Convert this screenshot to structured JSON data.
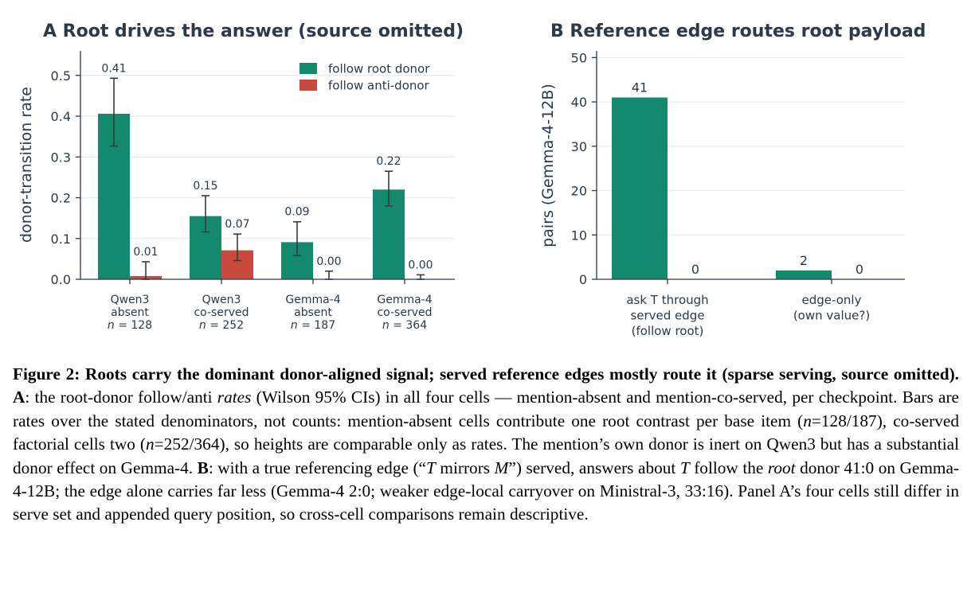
{
  "colors": {
    "root": "#138a6e",
    "anti": "#c94a3d",
    "axis": "#2b3a4a"
  },
  "chart_data": [
    {
      "type": "bar",
      "title": "A  Root drives the answer (source omitted)",
      "ylabel": "donor-transition rate",
      "ylim": [
        0,
        0.56
      ],
      "yticks": [
        "0.0",
        "0.1",
        "0.2",
        "0.3",
        "0.4",
        "0.5"
      ],
      "ytick_values": [
        0,
        0.1,
        0.2,
        0.3,
        0.4,
        0.5
      ],
      "grid": true,
      "legend_position": "top-right",
      "categories": [
        {
          "line1": "Qwen3",
          "line2": "absent",
          "n_prefix": "n",
          "n_value": " = 128"
        },
        {
          "line1": "Qwen3",
          "line2": "co-served",
          "n_prefix": "n",
          "n_value": " = 252"
        },
        {
          "line1": "Gemma-4",
          "line2": "absent",
          "n_prefix": "n",
          "n_value": " = 187"
        },
        {
          "line1": "Gemma-4",
          "line2": "co-served",
          "n_prefix": "n",
          "n_value": " = 364"
        }
      ],
      "series": [
        {
          "name": "follow root donor",
          "color": "#138a6e",
          "values": [
            0.406,
            0.155,
            0.091,
            0.22
          ],
          "labels": [
            "0.41",
            "0.15",
            "0.09",
            "0.22"
          ],
          "ci": [
            [
              0.327,
              0.493
            ],
            [
              0.116,
              0.205
            ],
            [
              0.058,
              0.141
            ],
            [
              0.18,
              0.265
            ]
          ]
        },
        {
          "name": "follow anti-donor",
          "color": "#c94a3d",
          "values": [
            0.008,
            0.071,
            0.0,
            0.0
          ],
          "labels": [
            "0.01",
            "0.07",
            "0.00",
            "0.00"
          ],
          "ci": [
            [
              0.0,
              0.043
            ],
            [
              0.046,
              0.111
            ],
            [
              0.0,
              0.02
            ],
            [
              0.0,
              0.011
            ]
          ]
        }
      ]
    },
    {
      "type": "bar",
      "title": "B  Reference edge routes root payload",
      "ylabel": "pairs (Gemma-4-12B)",
      "ylim": [
        0,
        51.5
      ],
      "yticks": [
        "0",
        "10",
        "20",
        "30",
        "40",
        "50"
      ],
      "ytick_values": [
        0,
        10,
        20,
        30,
        40,
        50
      ],
      "grid": true,
      "categories": [
        {
          "lines": [
            "ask T through",
            "served edge",
            "(follow root)"
          ]
        },
        {
          "lines": [
            "edge-only",
            "(own value?)"
          ]
        }
      ],
      "series": [
        {
          "name": "follow root",
          "color": "#138a6e",
          "values": [
            41,
            2
          ],
          "labels": [
            "41",
            "2"
          ]
        },
        {
          "name": "anti",
          "color": "#c94a3d",
          "values": [
            0,
            0
          ],
          "labels": [
            "0",
            "0"
          ]
        }
      ]
    }
  ],
  "caption": {
    "figure_label": "Figure 2:",
    "bold_title": "Roots carry the dominant donor-aligned signal; served reference edges mostly route it (sparse serving, source omitted).",
    "panel_a_label": "A",
    "a_text_1": ": the root-donor follow/anti ",
    "a_rates": "rates",
    "a_text_2": " (Wilson 95% CIs) in all four cells — mention-absent and mention-co-served, per checkpoint.  Bars are rates over the stated denominators, not counts: mention-absent cells contribute one root contrast per base item (",
    "n_sym": "n",
    "a_n1": "=128/187), co-served factorial cells two (",
    "a_n2": "=252/364), so heights are comparable only as rates. The mention’s own donor is inert on Qwen3 but has a substantial donor effect on Gemma-4. ",
    "panel_b_label": "B",
    "b_text_1": ": with a true referencing edge (“",
    "t_sym": "T",
    "b_mirrors": " mirrors ",
    "m_sym": "M",
    "b_text_2": "”) served, answers about ",
    "b_text_3": " follow the ",
    "b_root": "root",
    "b_text_4": " donor 41:0 on Gemma-4-12B; the edge alone carries far less (Gemma-4 2:0; weaker edge-local carryover on Ministral-3, 33:16). Panel A’s four cells still differ in serve set and appended query position, so cross-cell comparisons remain descriptive."
  }
}
